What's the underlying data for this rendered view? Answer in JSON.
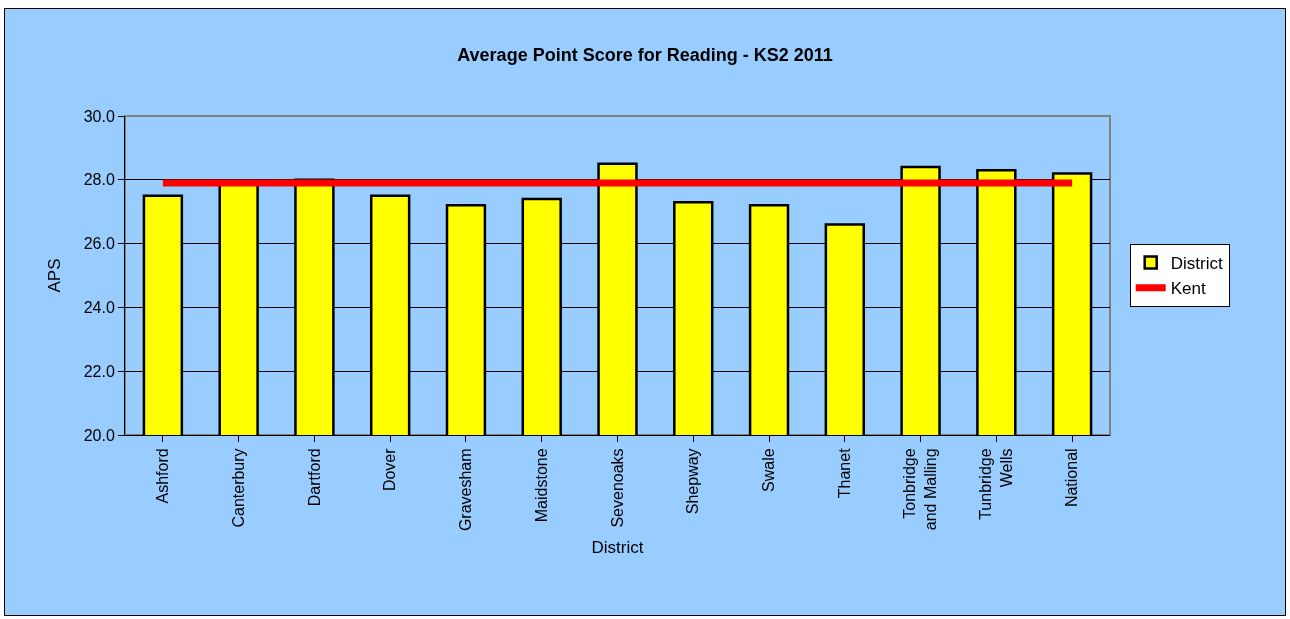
{
  "chart_data": {
    "type": "bar",
    "title": "Average Point Score for Reading - KS2 2011",
    "xlabel": "District",
    "ylabel": "APS",
    "categories": [
      "Ashford",
      "Canterbury",
      "Dartford",
      "Dover",
      "Gravesham",
      "Maidstone",
      "Sevenoaks",
      "Shepway",
      "Swale",
      "Thanet",
      "Tonbridge and Malling",
      "Tunbridge Wells",
      "National"
    ],
    "series": [
      {
        "name": "District",
        "color": "#ffff00",
        "values": [
          27.5,
          27.9,
          28.0,
          27.5,
          27.2,
          27.4,
          28.5,
          27.3,
          27.2,
          26.6,
          28.4,
          28.3,
          28.2
        ]
      },
      {
        "name": "Kent",
        "type": "line",
        "color": "#ff0000",
        "marker": "none",
        "values": [
          27.9,
          27.9,
          27.9,
          27.9,
          27.9,
          27.9,
          27.9,
          27.9,
          27.9,
          27.9,
          27.9,
          27.9,
          27.9
        ]
      }
    ],
    "ylim": [
      20,
      30
    ],
    "yticks": [
      {
        "value": 20,
        "label": "20.0"
      },
      {
        "value": 22,
        "label": "22.0"
      },
      {
        "value": 24,
        "label": "24.0"
      },
      {
        "value": 26,
        "label": "26.0"
      },
      {
        "value": 28,
        "label": "28.0"
      },
      {
        "value": 30,
        "label": "30.0"
      }
    ],
    "grid": "y",
    "legend": "right"
  }
}
